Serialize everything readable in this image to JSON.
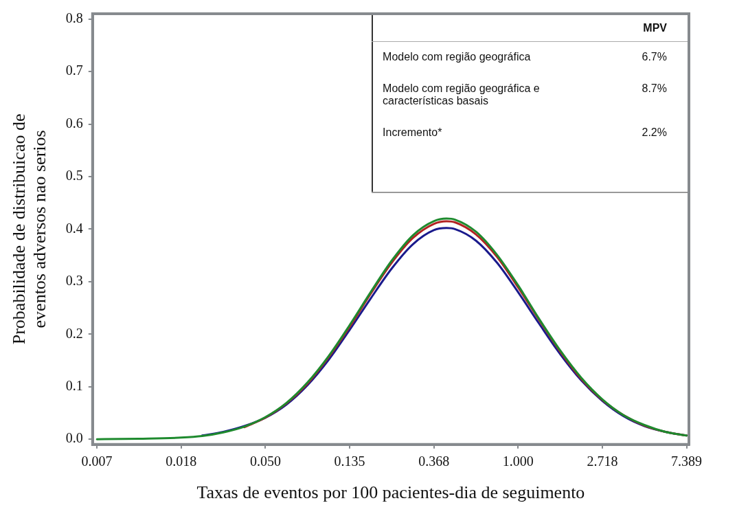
{
  "chart_data": {
    "type": "line",
    "xlabel": "Taxas de eventos por 100 pacientes-dia de seguimento",
    "ylabel": "Probabilidade de distribuicao de\neventos adversos nao serios",
    "log": "x",
    "xlim": [
      0.0064,
      7.6
    ],
    "xticks": [
      {
        "value": 0.006738,
        "label": "0.007"
      },
      {
        "value": 0.01832,
        "label": "0.018"
      },
      {
        "value": 0.04979,
        "label": "0.050"
      },
      {
        "value": 0.1353,
        "label": "0.135"
      },
      {
        "value": 0.3679,
        "label": "0.368"
      },
      {
        "value": 1,
        "label": "1.000"
      },
      {
        "value": 2.718,
        "label": "2.718"
      },
      {
        "value": 7.389,
        "label": "7.389"
      }
    ],
    "ylim": [
      -0.01,
      0.81
    ],
    "yticks": [
      {
        "value": 0,
        "label": "0.0"
      },
      {
        "value": 0.1,
        "label": "0.1"
      },
      {
        "value": 0.2,
        "label": "0.2"
      },
      {
        "value": 0.3,
        "label": "0.3"
      },
      {
        "value": 0.4,
        "label": "0.4"
      },
      {
        "value": 0.5,
        "label": "0.5"
      },
      {
        "value": 0.6,
        "label": "0.6"
      },
      {
        "value": 0.7,
        "label": "0.7"
      },
      {
        "value": 0.8,
        "label": "0.8"
      }
    ],
    "x": [
      0.00674,
      0.0111,
      0.0183,
      0.0235,
      0.0302,
      0.0388,
      0.0498,
      0.0639,
      0.0821,
      0.1054,
      0.1353,
      0.1738,
      0.2231,
      0.2865,
      0.3679,
      0.4274,
      0.4724,
      0.6065,
      0.7788,
      1,
      1.284,
      1.6487,
      2.117,
      2.718,
      3.49,
      4.482,
      5.755,
      7.389
    ],
    "series": [
      {
        "color": "#1a1a8c",
        "values": [
          null,
          null,
          null,
          0.007,
          0.014,
          0.025,
          0.041,
          0.066,
          0.103,
          0.151,
          0.208,
          0.268,
          0.325,
          0.371,
          0.398,
          0.402,
          0.4,
          0.378,
          0.336,
          0.28,
          0.22,
          0.162,
          0.112,
          0.073,
          0.044,
          0.025,
          0.014,
          0.007
        ]
      },
      {
        "color": "#b22222",
        "values": [
          null,
          null,
          null,
          null,
          null,
          0.023,
          0.041,
          0.068,
          0.106,
          0.156,
          0.214,
          0.277,
          0.336,
          0.383,
          0.41,
          0.415,
          0.413,
          0.39,
          0.347,
          0.289,
          0.227,
          0.167,
          0.115,
          0.075,
          0.046,
          0.026,
          0.014,
          0.007
        ]
      },
      {
        "color": "#1e8a2e",
        "values": [
          0.0,
          0.001,
          0.003,
          0.006,
          0.013,
          0.024,
          0.042,
          0.069,
          0.108,
          0.158,
          0.217,
          0.28,
          0.34,
          0.388,
          0.415,
          0.42,
          0.418,
          0.395,
          0.351,
          0.293,
          0.229,
          0.169,
          0.117,
          0.076,
          0.046,
          0.027,
          0.014,
          0.007
        ]
      }
    ],
    "marker": "none",
    "line_style": "solid",
    "grid": false,
    "legend": false,
    "annotations": [
      "MPV",
      "Modelo com região geográfica",
      "6.7%",
      "Modelo com região geográfica e características basais",
      "8.7%",
      "Incremento*",
      "2.2%"
    ]
  }
}
